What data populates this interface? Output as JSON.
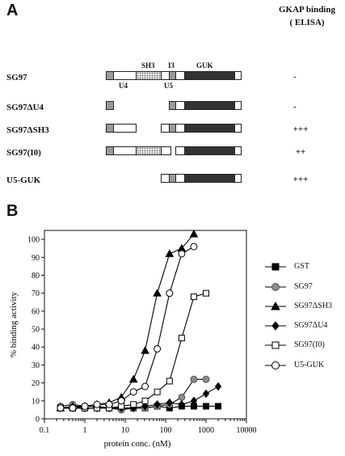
{
  "panel_a": {
    "letter": "A",
    "header_line1": "GKAP binding",
    "header_line2": "( ELISA)",
    "domain_labels": {
      "sh3": "SH3",
      "i3": "I3",
      "guk": "GUK",
      "u4": "U4",
      "u5": "U5"
    },
    "constructs": [
      {
        "name": "SG97",
        "binding": "-"
      },
      {
        "name": "SG97ΔU4",
        "binding": "-"
      },
      {
        "name": "SG97ΔSH3",
        "binding": "+++"
      },
      {
        "name": "SG97(I0)",
        "binding": "++"
      },
      {
        "name": "U5-GUK",
        "binding": "+++"
      }
    ]
  },
  "panel_b": {
    "letter": "B"
  },
  "chart_data": {
    "type": "scatter",
    "xlabel": "protein conc. (nM)",
    "ylabel": "% binding activity",
    "xscale": "log",
    "xlim": [
      0.1,
      10000
    ],
    "ylim": [
      0,
      105
    ],
    "xticks": [
      "0.1",
      "1",
      "10",
      "100",
      "1000",
      "10000"
    ],
    "yticks": [
      "0",
      "10",
      "20",
      "30",
      "40",
      "50",
      "60",
      "70",
      "80",
      "90",
      "100"
    ],
    "legend_position": "right",
    "series": [
      {
        "name": "GST",
        "marker": "square-filled",
        "x": [
          0.25,
          0.5,
          1,
          2,
          4,
          8,
          16,
          31,
          62,
          125,
          250,
          500,
          1000,
          2000
        ],
        "y": [
          6,
          6,
          6,
          6,
          6,
          6,
          6,
          6,
          7,
          6,
          7,
          7,
          7,
          7
        ]
      },
      {
        "name": "SG97",
        "marker": "circle-grey",
        "x": [
          0.25,
          0.5,
          1,
          2,
          4,
          8,
          16,
          31,
          62,
          125,
          250,
          500,
          1000
        ],
        "y": [
          7,
          8,
          7,
          7,
          6,
          5,
          6,
          6,
          7,
          8,
          12,
          22,
          22
        ]
      },
      {
        "name": "SG97ΔSH3",
        "marker": "triangle-filled",
        "x": [
          0.25,
          0.5,
          1,
          2,
          4,
          8,
          16,
          31,
          62,
          125,
          250,
          500
        ],
        "y": [
          6,
          7,
          7,
          8,
          9,
          12,
          22,
          38,
          70,
          92,
          95,
          103
        ]
      },
      {
        "name": "SG97ΔU4",
        "marker": "diamond-filled",
        "x": [
          0.25,
          0.5,
          1,
          2,
          4,
          8,
          16,
          31,
          62,
          125,
          250,
          500,
          1000,
          2000
        ],
        "y": [
          6,
          6,
          6,
          6,
          6,
          6,
          6,
          7,
          8,
          9,
          8,
          10,
          14,
          18
        ]
      },
      {
        "name": "SG97(I0)",
        "marker": "square-open",
        "x": [
          0.25,
          0.5,
          1,
          2,
          4,
          8,
          16,
          31,
          62,
          125,
          250,
          500,
          1000
        ],
        "y": [
          6,
          6,
          6,
          6,
          6,
          7,
          8,
          10,
          15,
          21,
          45,
          68,
          70
        ]
      },
      {
        "name": "U5-GUK",
        "marker": "circle-open",
        "x": [
          0.25,
          0.5,
          1,
          2,
          4,
          8,
          16,
          31,
          62,
          125,
          250,
          500
        ],
        "y": [
          6,
          6,
          7,
          8,
          8,
          10,
          15,
          18,
          39,
          70,
          92,
          96
        ]
      }
    ]
  }
}
